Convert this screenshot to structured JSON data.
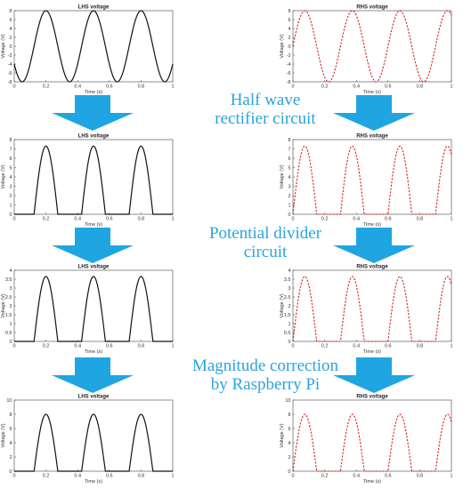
{
  "stages": [
    {
      "line1": "Half wave",
      "line2": "rectifier circuit"
    },
    {
      "line1": "Potential divider",
      "line2": "circuit"
    },
    {
      "line1": "Magnitude correction",
      "line2": "by Raspberry Pi"
    }
  ],
  "colors": {
    "lhs": "#111111",
    "rhs": "#d42020",
    "arrow": "#1fa6e2",
    "stage_text": "#2aa4dc"
  },
  "chart_data": [
    {
      "type": "line",
      "title": "LHS voltage",
      "xlabel": "Time (s)",
      "ylabel": "Voltage (V)",
      "xlim": [
        0,
        1
      ],
      "ylim": [
        -8,
        8
      ],
      "xticks": [
        "0",
        "0.2",
        "0.4",
        "0.6",
        "0.8",
        "1"
      ],
      "yticks": [
        "-8",
        "-6",
        "-4",
        "-2",
        "0",
        "2",
        "4",
        "6",
        "8"
      ],
      "yticks_shown": [
        "-8",
        "-6",
        "-4",
        "-2",
        "0",
        "2",
        "4",
        "6",
        "8"
      ],
      "series": [
        {
          "color": "#111111",
          "dashed": false,
          "amplitude": 8,
          "period": 0.3,
          "phase": 0.125,
          "rectified": false
        }
      ]
    },
    {
      "type": "line",
      "title": "RHS voltage",
      "xlabel": "Time (s)",
      "ylabel": "Voltage (V)",
      "xlim": [
        0,
        1
      ],
      "ylim": [
        -8,
        8
      ],
      "xticks": [
        "0",
        "0.2",
        "0.4",
        "0.6",
        "0.8",
        "1"
      ],
      "yticks": [
        "-8",
        "-6",
        "-4",
        "-2",
        "0",
        "2",
        "4",
        "6",
        "8"
      ],
      "yticks_shown": [
        "-8",
        "-6",
        "-4",
        "-2",
        "0",
        "2",
        "4",
        "6",
        "8"
      ],
      "series": [
        {
          "color": "#d42020",
          "dashed": true,
          "amplitude": 8,
          "period": 0.3,
          "phase": 0.0,
          "rectified": false
        }
      ]
    },
    {
      "type": "line",
      "title": "LHS voltage",
      "xlabel": "Time (s)",
      "ylabel": "Voltage (V)",
      "xlim": [
        0,
        1
      ],
      "ylim": [
        0,
        8
      ],
      "xticks": [
        "0",
        "0.2",
        "0.4",
        "0.6",
        "0.8",
        "1"
      ],
      "yticks": [
        "0",
        "1",
        "2",
        "3",
        "4",
        "5",
        "6",
        "7",
        "8"
      ],
      "yticks_shown": [
        "0",
        "1",
        "2",
        "3",
        "4",
        "5",
        "6",
        "7",
        "8"
      ],
      "series": [
        {
          "color": "#111111",
          "dashed": false,
          "amplitude": 7.3,
          "period": 0.3,
          "phase": 0.125,
          "rectified": true
        }
      ]
    },
    {
      "type": "line",
      "title": "RHS voltage",
      "xlabel": "Time (s)",
      "ylabel": "Voltage (V)",
      "xlim": [
        0,
        1
      ],
      "ylim": [
        0,
        8
      ],
      "xticks": [
        "0",
        "0.2",
        "0.4",
        "0.6",
        "0.8",
        "1"
      ],
      "yticks": [
        "0",
        "1",
        "2",
        "3",
        "4",
        "5",
        "6",
        "7",
        "8"
      ],
      "yticks_shown": [
        "0",
        "1",
        "2",
        "3",
        "4",
        "5",
        "6",
        "7",
        "8"
      ],
      "series": [
        {
          "color": "#d42020",
          "dashed": true,
          "amplitude": 7.3,
          "period": 0.3,
          "phase": 0.0,
          "rectified": true
        }
      ]
    },
    {
      "type": "line",
      "title": "LHS voltage",
      "xlabel": "Time (s)",
      "ylabel": "Voltage (V)",
      "xlim": [
        0,
        1
      ],
      "ylim": [
        0,
        4
      ],
      "xticks": [
        "0",
        "0.2",
        "0.4",
        "0.6",
        "0.8",
        "1"
      ],
      "yticks": [
        "0",
        "0.5",
        "1",
        "1.5",
        "2",
        "2.5",
        "3",
        "3.5",
        "4"
      ],
      "yticks_shown": [
        "0",
        "0.5",
        "1",
        "1.5",
        "2",
        "2.5",
        "3",
        "3.5",
        "4"
      ],
      "series": [
        {
          "color": "#111111",
          "dashed": false,
          "amplitude": 3.65,
          "period": 0.3,
          "phase": 0.125,
          "rectified": true
        }
      ]
    },
    {
      "type": "line",
      "title": "RHS voltage",
      "xlabel": "Time (s)",
      "ylabel": "Voltage (V)",
      "xlim": [
        0,
        1
      ],
      "ylim": [
        0,
        4
      ],
      "xticks": [
        "0",
        "0.2",
        "0.4",
        "0.6",
        "0.8",
        "1"
      ],
      "yticks": [
        "0",
        "0.5",
        "1",
        "1.5",
        "2",
        "2.5",
        "3",
        "3.5",
        "4"
      ],
      "yticks_shown": [
        "0",
        "0.5",
        "1",
        "1.5",
        "2",
        "2.5",
        "3",
        "3.5",
        "4"
      ],
      "series": [
        {
          "color": "#d42020",
          "dashed": true,
          "amplitude": 3.65,
          "period": 0.3,
          "phase": 0.0,
          "rectified": true
        }
      ]
    },
    {
      "type": "line",
      "title": "LHS voltage",
      "xlabel": "Time (s)",
      "ylabel": "Voltage (V)",
      "xlim": [
        0,
        1
      ],
      "ylim": [
        0,
        10
      ],
      "xticks": [
        "0",
        "0.2",
        "0.4",
        "0.6",
        "0.8",
        "1"
      ],
      "yticks": [
        "0",
        "2",
        "4",
        "6",
        "8",
        "10"
      ],
      "yticks_shown": [
        "0",
        "2",
        "4",
        "6",
        "8",
        "10"
      ],
      "series": [
        {
          "color": "#111111",
          "dashed": false,
          "amplitude": 8,
          "period": 0.3,
          "phase": 0.125,
          "rectified": true
        }
      ]
    },
    {
      "type": "line",
      "title": "RHS voltage",
      "xlabel": "Time (s)",
      "ylabel": "Voltage (V)",
      "xlim": [
        0,
        1
      ],
      "ylim": [
        0,
        10
      ],
      "xticks": [
        "0",
        "0.2",
        "0.4",
        "0.6",
        "0.8",
        "1"
      ],
      "yticks": [
        "0",
        "2",
        "4",
        "6",
        "8",
        "10"
      ],
      "yticks_shown": [
        "0",
        "2",
        "4",
        "6",
        "8",
        "10"
      ],
      "series": [
        {
          "color": "#d42020",
          "dashed": true,
          "amplitude": 8,
          "period": 0.3,
          "phase": 0.0,
          "rectified": true
        }
      ]
    }
  ]
}
